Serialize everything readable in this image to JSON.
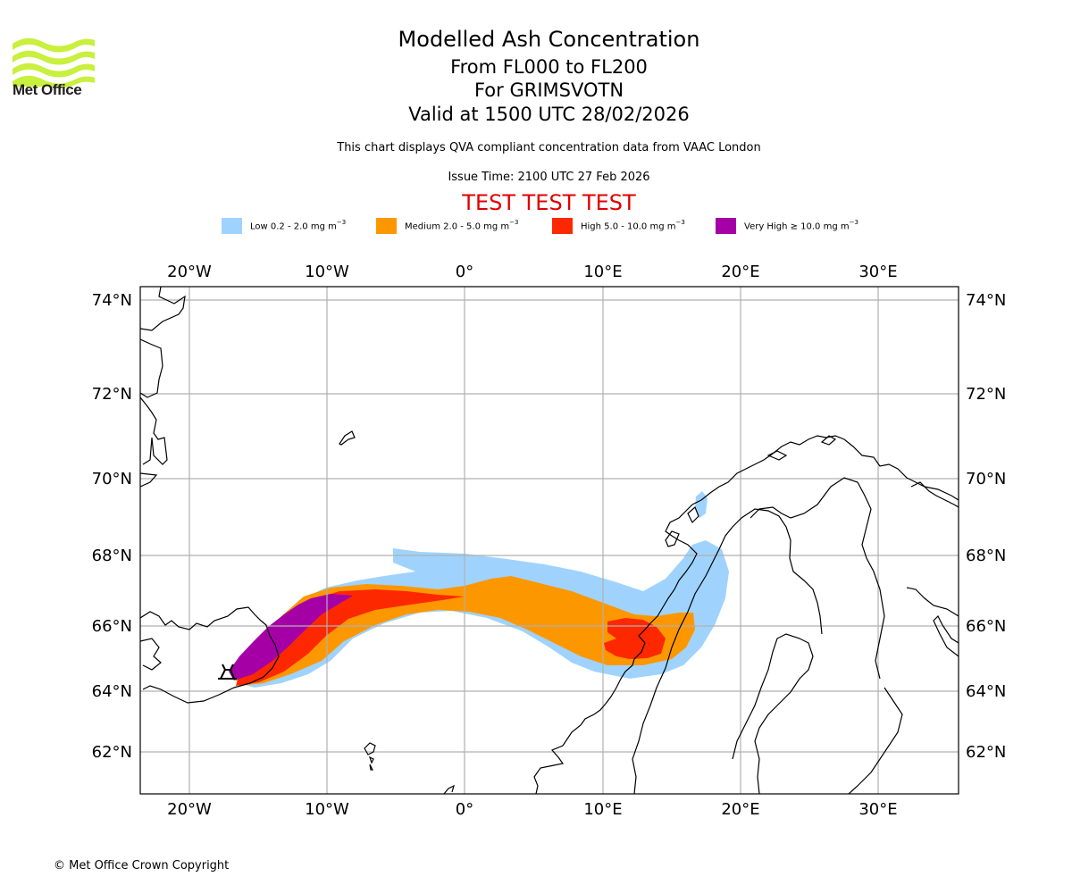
{
  "logo": {
    "text": "Met Office",
    "icon": "met-office-waves-icon",
    "color": "#c8f03c"
  },
  "header": {
    "title": "Modelled Ash Concentration",
    "flight_levels": "From FL000 to FL200",
    "volcano": "For GRIMSVOTN",
    "valid_time": "Valid at 1500 UTC 28/02/2026",
    "description": "This chart displays QVA compliant concentration data from VAAC London",
    "issue_time": "Issue Time: 2100 UTC 27 Feb 2026",
    "test_banner": "TEST TEST TEST",
    "test_banner_color": "#e00000"
  },
  "legend": [
    {
      "label": "Low 0.2 - 2.0 mg m",
      "unit_exp": "−3",
      "color": "#9fd3fd"
    },
    {
      "label": "Medium 2.0 - 5.0 mg m",
      "unit_exp": "−3",
      "color": "#fd9700"
    },
    {
      "label": "High 5.0 - 10.0 mg m",
      "unit_exp": "−3",
      "color": "#fd2800"
    },
    {
      "label": "Very High  ≥  10.0 mg m",
      "unit_exp": "−3",
      "color": "#a500a5"
    }
  ],
  "map": {
    "longitude_labels": [
      "20°W",
      "10°W",
      "0°",
      "10°E",
      "20°E",
      "30°E"
    ],
    "latitude_labels": [
      "74°N",
      "72°N",
      "70°N",
      "68°N",
      "66°N",
      "64°N",
      "62°N"
    ],
    "volcano_symbol": "volcano-icon",
    "volcano_name": "GRIMSVOTN"
  },
  "footer": {
    "copyright": "© Met Office Crown Copyright"
  }
}
